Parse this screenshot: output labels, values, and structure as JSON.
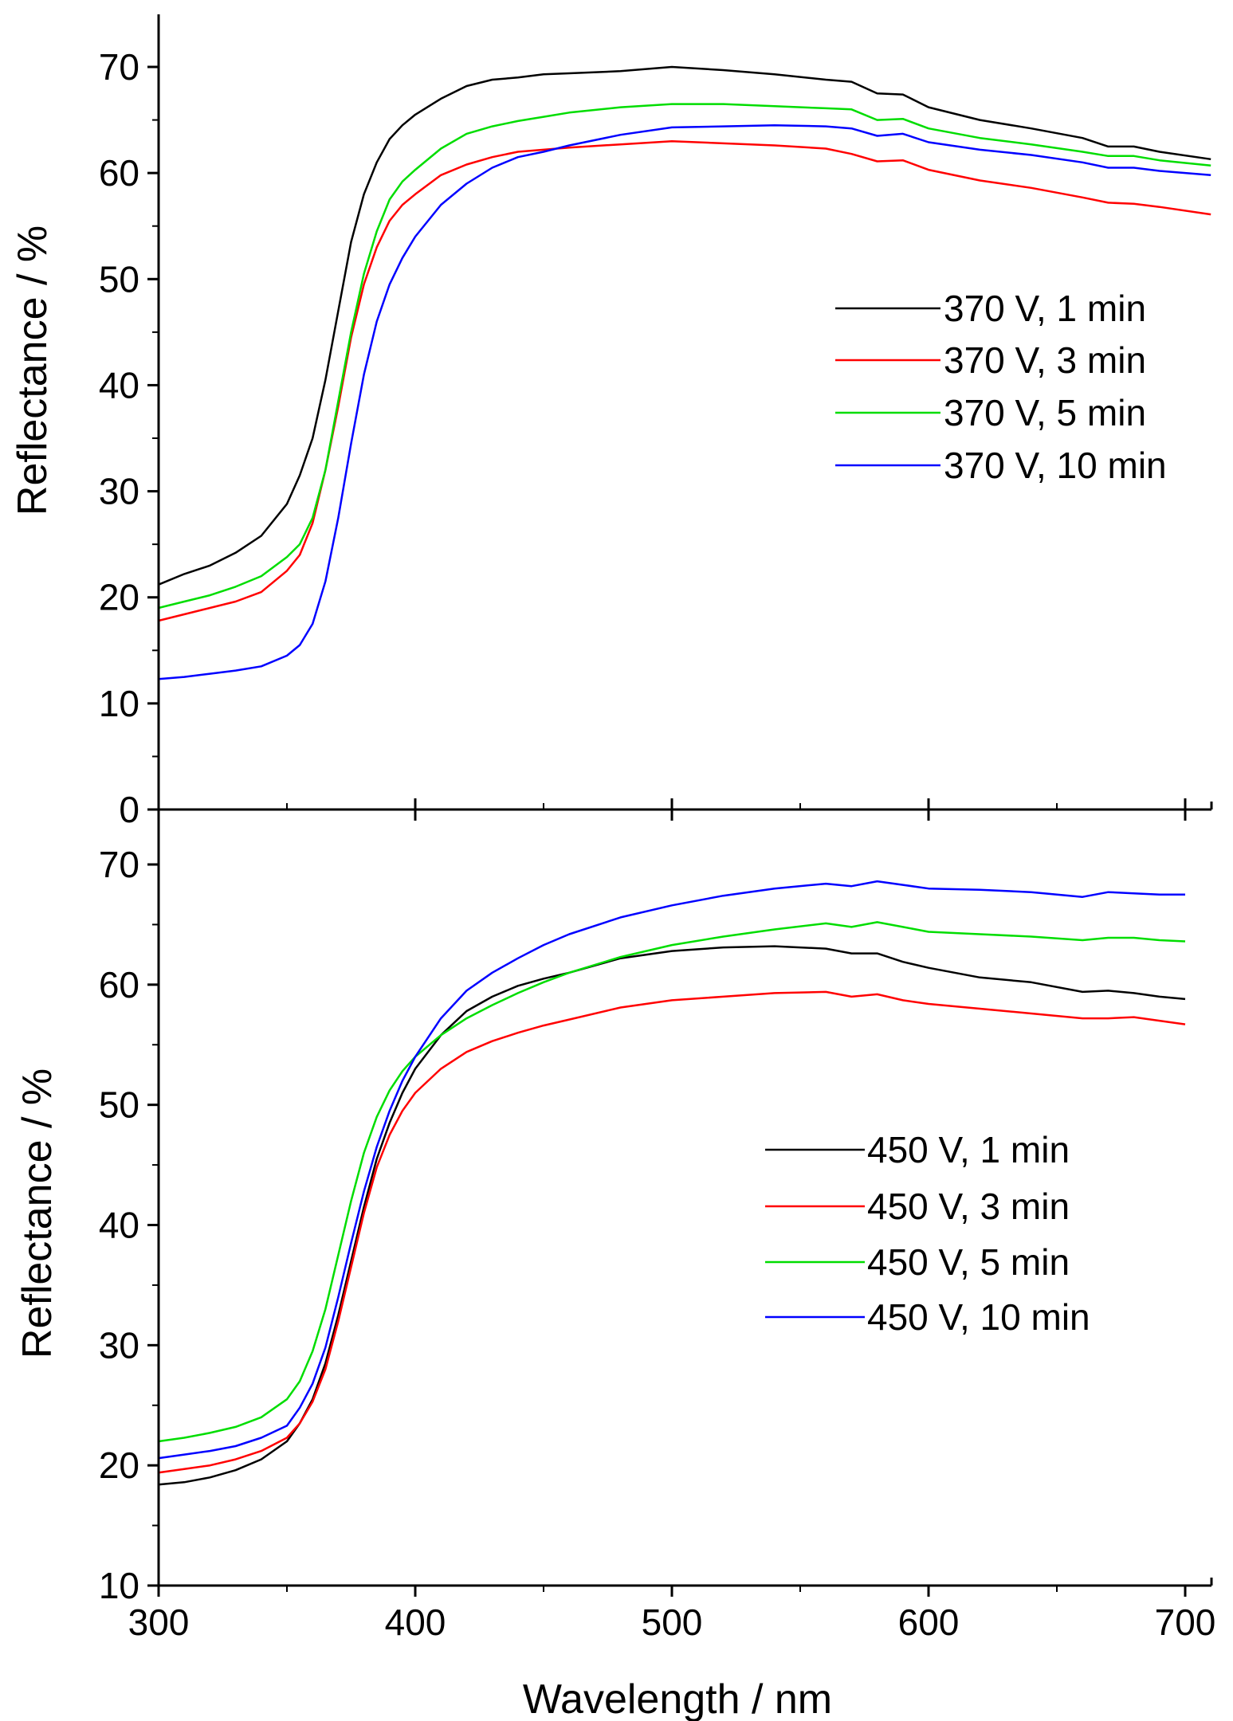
{
  "chart_data": [
    {
      "type": "line",
      "panel": "top",
      "title": "",
      "xlabel": "",
      "ylabel": "Reflectance / %",
      "xlim": [
        300,
        710
      ],
      "ylim": [
        0,
        75
      ],
      "yticks": [
        0,
        10,
        20,
        30,
        40,
        50,
        60,
        70
      ],
      "xticks": [
        300,
        400,
        500,
        600,
        700
      ],
      "legend_position": "center-right",
      "x": [
        300,
        310,
        320,
        330,
        340,
        350,
        355,
        360,
        365,
        370,
        375,
        380,
        385,
        390,
        395,
        400,
        410,
        420,
        430,
        440,
        450,
        460,
        480,
        500,
        520,
        540,
        560,
        570,
        580,
        590,
        600,
        620,
        640,
        660,
        670,
        680,
        690,
        710
      ],
      "series": [
        {
          "name": "370 V, 1 min",
          "color": "#000000",
          "values": [
            21.2,
            22.2,
            23.0,
            24.2,
            25.8,
            28.8,
            31.5,
            35.0,
            40.5,
            47.0,
            53.5,
            58.0,
            61.0,
            63.2,
            64.5,
            65.5,
            67.0,
            68.2,
            68.8,
            69.0,
            69.3,
            69.4,
            69.6,
            70.0,
            69.7,
            69.3,
            68.8,
            68.6,
            67.5,
            67.4,
            66.2,
            65.0,
            64.2,
            63.3,
            62.5,
            62.5,
            62.0,
            61.3
          ]
        },
        {
          "name": "370 V, 3 min",
          "color": "#ff0000",
          "values": [
            17.8,
            18.4,
            19.0,
            19.6,
            20.5,
            22.5,
            24.0,
            27.0,
            32.0,
            38.0,
            44.5,
            49.5,
            53.0,
            55.5,
            57.0,
            58.0,
            59.8,
            60.8,
            61.5,
            62.0,
            62.2,
            62.4,
            62.7,
            63.0,
            62.8,
            62.6,
            62.3,
            61.8,
            61.1,
            61.2,
            60.3,
            59.3,
            58.6,
            57.7,
            57.2,
            57.1,
            56.8,
            56.1
          ]
        },
        {
          "name": "370 V, 5 min",
          "color": "#00dd00",
          "values": [
            19.0,
            19.6,
            20.2,
            21.0,
            22.0,
            23.8,
            25.0,
            27.5,
            32.0,
            38.5,
            45.0,
            50.5,
            54.5,
            57.5,
            59.2,
            60.3,
            62.3,
            63.7,
            64.4,
            64.9,
            65.3,
            65.7,
            66.2,
            66.5,
            66.5,
            66.3,
            66.1,
            66.0,
            65.0,
            65.1,
            64.2,
            63.3,
            62.7,
            62.0,
            61.6,
            61.6,
            61.2,
            60.7
          ]
        },
        {
          "name": "370 V, 10 min",
          "color": "#0000ff",
          "values": [
            12.3,
            12.5,
            12.8,
            13.1,
            13.5,
            14.5,
            15.5,
            17.5,
            21.5,
            27.5,
            34.5,
            41.0,
            46.0,
            49.5,
            52.0,
            54.0,
            57.0,
            59.0,
            60.5,
            61.5,
            62.0,
            62.6,
            63.6,
            64.3,
            64.4,
            64.5,
            64.4,
            64.2,
            63.5,
            63.7,
            62.9,
            62.2,
            61.7,
            61.0,
            60.5,
            60.5,
            60.2,
            59.8
          ]
        }
      ]
    },
    {
      "type": "line",
      "panel": "bottom",
      "title": "",
      "xlabel": "Wavelength / nm",
      "ylabel": "Reflectance / %",
      "xlim": [
        300,
        710
      ],
      "ylim": [
        10,
        73
      ],
      "yticks": [
        10,
        20,
        30,
        40,
        50,
        60,
        70
      ],
      "xticks": [
        300,
        400,
        500,
        600,
        700
      ],
      "xticklabels": [
        "300",
        "400",
        "500",
        "600",
        "700"
      ],
      "legend_position": "center-right",
      "x": [
        300,
        310,
        320,
        330,
        340,
        350,
        355,
        360,
        365,
        370,
        375,
        380,
        385,
        390,
        395,
        400,
        410,
        420,
        430,
        440,
        450,
        460,
        480,
        500,
        520,
        540,
        560,
        570,
        580,
        590,
        600,
        620,
        640,
        660,
        670,
        680,
        690,
        700
      ],
      "series": [
        {
          "name": "450 V, 1 min",
          "color": "#000000",
          "values": [
            18.4,
            18.6,
            19.0,
            19.6,
            20.5,
            22.0,
            23.5,
            25.5,
            28.5,
            32.5,
            37.0,
            41.5,
            45.5,
            48.5,
            51.0,
            53.0,
            55.8,
            57.8,
            59.0,
            59.9,
            60.5,
            61.0,
            62.2,
            62.8,
            63.1,
            63.2,
            63.0,
            62.6,
            62.6,
            61.9,
            61.4,
            60.6,
            60.2,
            59.4,
            59.5,
            59.3,
            59.0,
            58.8
          ]
        },
        {
          "name": "450 V, 3 min",
          "color": "#ff0000",
          "values": [
            19.4,
            19.7,
            20.0,
            20.5,
            21.2,
            22.3,
            23.5,
            25.3,
            28.0,
            32.0,
            36.5,
            41.0,
            44.8,
            47.5,
            49.5,
            51.0,
            53.0,
            54.4,
            55.3,
            56.0,
            56.6,
            57.1,
            58.1,
            58.7,
            59.0,
            59.3,
            59.4,
            59.0,
            59.2,
            58.7,
            58.4,
            58.0,
            57.6,
            57.2,
            57.2,
            57.3,
            57.0,
            56.7
          ]
        },
        {
          "name": "450 V, 5 min",
          "color": "#00dd00",
          "values": [
            22.0,
            22.3,
            22.7,
            23.2,
            24.0,
            25.5,
            27.0,
            29.5,
            33.0,
            37.5,
            42.0,
            46.0,
            49.0,
            51.2,
            52.8,
            54.0,
            55.8,
            57.2,
            58.3,
            59.3,
            60.2,
            61.0,
            62.3,
            63.3,
            64.0,
            64.6,
            65.1,
            64.8,
            65.2,
            64.8,
            64.4,
            64.2,
            64.0,
            63.7,
            63.9,
            63.9,
            63.7,
            63.6
          ]
        },
        {
          "name": "450 V, 10 min",
          "color": "#0000ff",
          "values": [
            20.6,
            20.9,
            21.2,
            21.6,
            22.3,
            23.3,
            24.8,
            26.8,
            29.8,
            34.0,
            38.5,
            42.8,
            46.5,
            49.5,
            52.0,
            54.0,
            57.2,
            59.5,
            61.0,
            62.2,
            63.3,
            64.2,
            65.6,
            66.6,
            67.4,
            68.0,
            68.4,
            68.2,
            68.6,
            68.3,
            68.0,
            67.9,
            67.7,
            67.3,
            67.7,
            67.6,
            67.5,
            67.5
          ]
        }
      ]
    }
  ]
}
